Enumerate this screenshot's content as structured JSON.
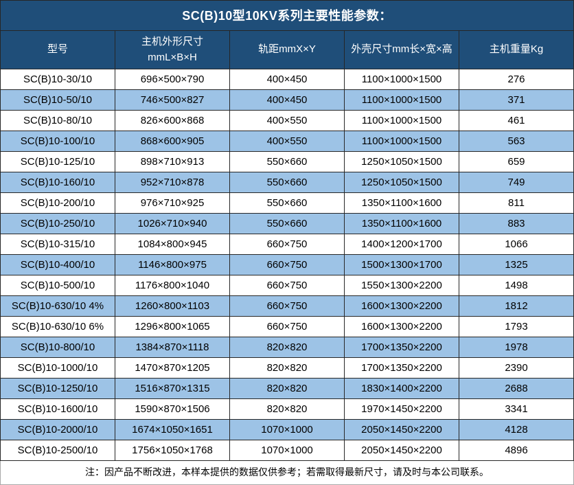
{
  "title": "SC(B)10型10KV系列主要性能参数：",
  "table": {
    "columns": [
      "型号",
      "主机外形尺寸\nmmL×B×H",
      "轨距mmX×Y",
      "外壳尺寸mm长×宽×高",
      "主机重量Kg"
    ],
    "rows": [
      [
        "SC(B)10-30/10",
        "696×500×790",
        "400×450",
        "1100×1000×1500",
        "276"
      ],
      [
        "SC(B)10-50/10",
        "746×500×827",
        "400×450",
        "1100×1000×1500",
        "371"
      ],
      [
        "SC(B)10-80/10",
        "826×600×868",
        "400×550",
        "1100×1000×1500",
        "461"
      ],
      [
        "SC(B)10-100/10",
        "868×600×905",
        "400×550",
        "1100×1000×1500",
        "563"
      ],
      [
        "SC(B)10-125/10",
        "898×710×913",
        "550×660",
        "1250×1050×1500",
        "659"
      ],
      [
        "SC(B)10-160/10",
        "952×710×878",
        "550×660",
        "1250×1050×1500",
        "749"
      ],
      [
        "SC(B)10-200/10",
        "976×710×925",
        "550×660",
        "1350×1100×1600",
        "811"
      ],
      [
        "SC(B)10-250/10",
        "1026×710×940",
        "550×660",
        "1350×1100×1600",
        "883"
      ],
      [
        "SC(B)10-315/10",
        "1084×800×945",
        "660×750",
        "1400×1200×1700",
        "1066"
      ],
      [
        "SC(B)10-400/10",
        "1146×800×975",
        "660×750",
        "1500×1300×1700",
        "1325"
      ],
      [
        "SC(B)10-500/10",
        "1176×800×1040",
        "660×750",
        "1550×1300×2200",
        "1498"
      ],
      [
        "SC(B)10-630/10 4%",
        "1260×800×1103",
        "660×750",
        "1600×1300×2200",
        "1812"
      ],
      [
        "SC(B)10-630/10 6%",
        "1296×800×1065",
        "660×750",
        "1600×1300×2200",
        "1793"
      ],
      [
        "SC(B)10-800/10",
        "1384×870×1118",
        "820×820",
        "1700×1350×2200",
        "1978"
      ],
      [
        "SC(B)10-1000/10",
        "1470×870×1205",
        "820×820",
        "1700×1350×2200",
        "2390"
      ],
      [
        "SC(B)10-1250/10",
        "1516×870×1315",
        "820×820",
        "1830×1400×2200",
        "2688"
      ],
      [
        "SC(B)10-1600/10",
        "1590×870×1506",
        "820×820",
        "1970×1450×2200",
        "3341"
      ],
      [
        "SC(B)10-2000/10",
        "1674×1050×1651",
        "1070×1000",
        "2050×1450×2200",
        "4128"
      ],
      [
        "SC(B)10-2500/10",
        "1756×1050×1768",
        "1070×1000",
        "2050×1450×2200",
        "4896"
      ]
    ]
  },
  "note": "注：因产品不断改进，本样本提供的数据仅供参考；若需取得最新尺寸，请及时与本公司联系。",
  "colors": {
    "header_bg": "#1F4E79",
    "row_bg": "#FFFFFF",
    "row_alt_bg": "#9DC3E6",
    "grid_border": "#262626",
    "header_text": "#FFFFFF",
    "body_text": "#000000"
  }
}
